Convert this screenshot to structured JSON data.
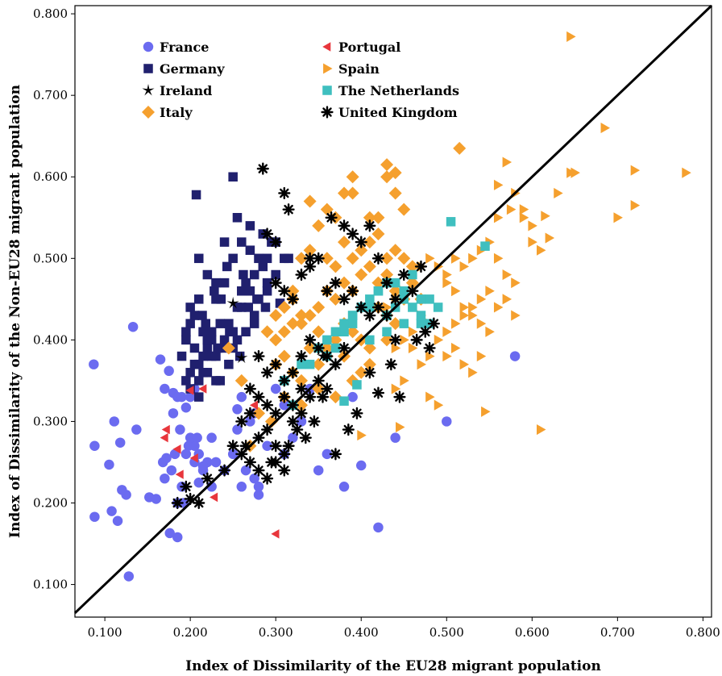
{
  "chart_data": {
    "type": "scatter",
    "xlabel": "Index of Dissimilarity of the EU28 migrant population",
    "ylabel": "Index of Dissimilarity of the Non-EU28 migrant population",
    "xlim": [
      0.065,
      0.81
    ],
    "ylim": [
      0.06,
      0.81
    ],
    "x_ticks": [
      "0.100",
      "0.200",
      "0.300",
      "0.400",
      "0.500",
      "0.600",
      "0.700",
      "0.800"
    ],
    "x_tick_values": [
      0.1,
      0.2,
      0.3,
      0.4,
      0.5,
      0.6,
      0.7,
      0.8
    ],
    "y_ticks": [
      "0.100",
      "0.200",
      "0.300",
      "0.400",
      "0.500",
      "0.600",
      "0.700",
      "0.800"
    ],
    "y_tick_values": [
      0.1,
      0.2,
      0.3,
      0.4,
      0.5,
      0.6,
      0.7,
      0.8
    ],
    "grid": false,
    "reference_line": "y = x",
    "legend_position": "top-left",
    "series": [
      {
        "name": "France",
        "marker": "circle",
        "color": "#6b6bf0",
        "x": [
          0.087,
          0.088,
          0.111,
          0.128,
          0.133,
          0.105,
          0.118,
          0.115,
          0.125,
          0.108,
          0.12,
          0.088,
          0.137,
          0.152,
          0.16,
          0.165,
          0.17,
          0.175,
          0.18,
          0.185,
          0.19,
          0.195,
          0.2,
          0.205,
          0.21,
          0.215,
          0.22,
          0.17,
          0.172,
          0.178,
          0.182,
          0.188,
          0.19,
          0.195,
          0.198,
          0.205,
          0.21,
          0.215,
          0.168,
          0.176,
          0.185,
          0.192,
          0.2,
          0.208,
          0.225,
          0.23,
          0.24,
          0.25,
          0.255,
          0.26,
          0.265,
          0.27,
          0.275,
          0.28,
          0.29,
          0.3,
          0.31,
          0.32,
          0.33,
          0.34,
          0.35,
          0.36,
          0.38,
          0.39,
          0.4,
          0.42,
          0.44,
          0.5,
          0.58,
          0.18,
          0.185,
          0.275,
          0.28,
          0.255,
          0.225,
          0.23,
          0.31,
          0.26,
          0.205
        ],
        "y": [
          0.37,
          0.183,
          0.3,
          0.11,
          0.416,
          0.247,
          0.274,
          0.178,
          0.21,
          0.19,
          0.216,
          0.27,
          0.29,
          0.207,
          0.205,
          0.376,
          0.34,
          0.362,
          0.335,
          0.33,
          0.33,
          0.317,
          0.33,
          0.27,
          0.26,
          0.24,
          0.25,
          0.23,
          0.255,
          0.24,
          0.26,
          0.29,
          0.22,
          0.26,
          0.27,
          0.25,
          0.225,
          0.245,
          0.25,
          0.163,
          0.158,
          0.2,
          0.28,
          0.28,
          0.22,
          0.25,
          0.24,
          0.26,
          0.315,
          0.22,
          0.24,
          0.3,
          0.23,
          0.21,
          0.27,
          0.34,
          0.26,
          0.28,
          0.3,
          0.34,
          0.24,
          0.26,
          0.22,
          0.33,
          0.246,
          0.17,
          0.28,
          0.3,
          0.38,
          0.31,
          0.2,
          0.31,
          0.22,
          0.29,
          0.28,
          0.25,
          0.32,
          0.33,
          0.34
        ]
      },
      {
        "name": "Germany",
        "marker": "square",
        "color": "#20206e",
        "x": [
          0.19,
          0.195,
          0.2,
          0.205,
          0.21,
          0.215,
          0.22,
          0.225,
          0.23,
          0.235,
          0.24,
          0.245,
          0.25,
          0.255,
          0.26,
          0.265,
          0.27,
          0.275,
          0.28,
          0.285,
          0.29,
          0.295,
          0.3,
          0.31,
          0.195,
          0.2,
          0.205,
          0.21,
          0.215,
          0.22,
          0.225,
          0.23,
          0.235,
          0.24,
          0.245,
          0.25,
          0.255,
          0.26,
          0.2,
          0.205,
          0.21,
          0.215,
          0.22,
          0.225,
          0.23,
          0.24,
          0.25,
          0.26,
          0.27,
          0.28,
          0.29,
          0.207,
          0.25,
          0.21,
          0.22,
          0.23,
          0.24,
          0.255,
          0.27,
          0.285,
          0.3,
          0.315,
          0.275,
          0.265,
          0.243,
          0.228,
          0.214,
          0.236,
          0.262,
          0.275,
          0.29,
          0.305,
          0.2,
          0.21,
          0.22,
          0.195,
          0.218,
          0.232,
          0.246,
          0.258,
          0.268,
          0.278,
          0.288
        ],
        "y": [
          0.38,
          0.4,
          0.42,
          0.39,
          0.37,
          0.41,
          0.36,
          0.4,
          0.38,
          0.35,
          0.39,
          0.42,
          0.41,
          0.4,
          0.44,
          0.47,
          0.46,
          0.48,
          0.45,
          0.49,
          0.5,
          0.52,
          0.48,
          0.5,
          0.41,
          0.44,
          0.43,
          0.45,
          0.36,
          0.39,
          0.38,
          0.35,
          0.42,
          0.4,
          0.37,
          0.39,
          0.44,
          0.46,
          0.34,
          0.37,
          0.35,
          0.38,
          0.4,
          0.41,
          0.45,
          0.47,
          0.5,
          0.52,
          0.54,
          0.5,
          0.46,
          0.578,
          0.6,
          0.5,
          0.48,
          0.47,
          0.52,
          0.55,
          0.51,
          0.53,
          0.52,
          0.5,
          0.43,
          0.41,
          0.49,
          0.46,
          0.43,
          0.45,
          0.48,
          0.42,
          0.47,
          0.445,
          0.36,
          0.33,
          0.4,
          0.35,
          0.42,
          0.39,
          0.41,
          0.38,
          0.44,
          0.45,
          0.44
        ]
      },
      {
        "name": "Ireland",
        "marker": "star",
        "color": "#000000",
        "x": [
          0.25,
          0.26,
          0.355
        ],
        "y": [
          0.445,
          0.378,
          0.38
        ]
      },
      {
        "name": "Italy",
        "marker": "diamond",
        "color": "#f5a02e",
        "x": [
          0.245,
          0.26,
          0.29,
          0.3,
          0.31,
          0.32,
          0.33,
          0.34,
          0.35,
          0.36,
          0.37,
          0.38,
          0.39,
          0.4,
          0.41,
          0.42,
          0.43,
          0.44,
          0.45,
          0.3,
          0.31,
          0.32,
          0.33,
          0.34,
          0.35,
          0.36,
          0.37,
          0.38,
          0.39,
          0.4,
          0.41,
          0.42,
          0.43,
          0.44,
          0.33,
          0.34,
          0.36,
          0.37,
          0.38,
          0.39,
          0.4,
          0.41,
          0.42,
          0.43,
          0.44,
          0.45,
          0.46,
          0.31,
          0.32,
          0.35,
          0.37,
          0.38,
          0.39,
          0.41,
          0.43,
          0.44,
          0.45,
          0.515,
          0.43,
          0.44,
          0.34,
          0.36,
          0.39,
          0.42,
          0.3,
          0.31,
          0.32,
          0.33,
          0.35,
          0.36,
          0.38,
          0.4,
          0.41,
          0.43,
          0.46,
          0.47,
          0.27,
          0.28,
          0.295,
          0.31,
          0.33,
          0.35,
          0.37,
          0.39
        ],
        "y": [
          0.39,
          0.35,
          0.41,
          0.43,
          0.44,
          0.45,
          0.42,
          0.43,
          0.44,
          0.46,
          0.45,
          0.47,
          0.46,
          0.48,
          0.49,
          0.47,
          0.48,
          0.46,
          0.45,
          0.4,
          0.41,
          0.42,
          0.43,
          0.39,
          0.41,
          0.38,
          0.4,
          0.42,
          0.41,
          0.4,
          0.39,
          0.44,
          0.43,
          0.42,
          0.5,
          0.51,
          0.5,
          0.49,
          0.52,
          0.5,
          0.51,
          0.52,
          0.53,
          0.5,
          0.51,
          0.5,
          0.49,
          0.44,
          0.46,
          0.54,
          0.55,
          0.58,
          0.6,
          0.55,
          0.6,
          0.58,
          0.56,
          0.635,
          0.615,
          0.605,
          0.57,
          0.56,
          0.58,
          0.55,
          0.37,
          0.38,
          0.36,
          0.35,
          0.37,
          0.39,
          0.38,
          0.36,
          0.37,
          0.4,
          0.47,
          0.45,
          0.27,
          0.31,
          0.3,
          0.33,
          0.32,
          0.34,
          0.33,
          0.35
        ]
      },
      {
        "name": "Portugal",
        "marker": "triangle-left",
        "color": "#e8363c",
        "x": [
          0.2,
          0.215,
          0.172,
          0.185,
          0.205,
          0.228,
          0.3,
          0.275,
          0.17,
          0.188
        ],
        "y": [
          0.338,
          0.34,
          0.29,
          0.266,
          0.255,
          0.207,
          0.162,
          0.32,
          0.28,
          0.235
        ]
      },
      {
        "name": "Spain",
        "marker": "triangle-right",
        "color": "#f5a02e",
        "x": [
          0.645,
          0.685,
          0.57,
          0.645,
          0.72,
          0.78,
          0.58,
          0.59,
          0.615,
          0.6,
          0.62,
          0.56,
          0.55,
          0.54,
          0.53,
          0.52,
          0.51,
          0.5,
          0.49,
          0.48,
          0.47,
          0.46,
          0.45,
          0.44,
          0.43,
          0.56,
          0.57,
          0.58,
          0.55,
          0.54,
          0.53,
          0.52,
          0.51,
          0.5,
          0.49,
          0.48,
          0.47,
          0.46,
          0.45,
          0.44,
          0.5,
          0.51,
          0.52,
          0.53,
          0.54,
          0.55,
          0.56,
          0.57,
          0.58,
          0.59,
          0.6,
          0.61,
          0.63,
          0.65,
          0.7,
          0.72,
          0.48,
          0.47,
          0.46,
          0.5,
          0.51,
          0.52,
          0.53,
          0.54,
          0.44,
          0.45,
          0.48,
          0.49,
          0.545,
          0.61,
          0.445,
          0.4,
          0.575,
          0.56
        ],
        "y": [
          0.772,
          0.66,
          0.618,
          0.605,
          0.608,
          0.605,
          0.58,
          0.56,
          0.552,
          0.54,
          0.525,
          0.55,
          0.52,
          0.51,
          0.5,
          0.49,
          0.5,
          0.48,
          0.49,
          0.5,
          0.49,
          0.47,
          0.46,
          0.45,
          0.44,
          0.5,
          0.48,
          0.47,
          0.46,
          0.45,
          0.44,
          0.43,
          0.42,
          0.41,
          0.4,
          0.42,
          0.43,
          0.41,
          0.4,
          0.39,
          0.47,
          0.46,
          0.44,
          0.43,
          0.42,
          0.41,
          0.44,
          0.45,
          0.43,
          0.55,
          0.52,
          0.51,
          0.58,
          0.605,
          0.55,
          0.565,
          0.38,
          0.37,
          0.39,
          0.38,
          0.39,
          0.37,
          0.36,
          0.38,
          0.34,
          0.35,
          0.33,
          0.32,
          0.312,
          0.29,
          0.293,
          0.283,
          0.56,
          0.59
        ]
      },
      {
        "name": "The Netherlands",
        "marker": "square",
        "color": "#3fbfbf",
        "x": [
          0.505,
          0.545,
          0.33,
          0.36,
          0.38,
          0.39,
          0.4,
          0.41,
          0.42,
          0.43,
          0.44,
          0.45,
          0.46,
          0.47,
          0.48,
          0.49,
          0.37,
          0.39,
          0.41,
          0.43,
          0.45,
          0.47,
          0.35,
          0.36,
          0.38,
          0.4,
          0.42,
          0.44,
          0.46,
          0.48,
          0.34,
          0.37,
          0.39,
          0.41,
          0.43,
          0.45,
          0.38,
          0.395,
          0.31,
          0.32,
          0.47
        ],
        "y": [
          0.545,
          0.515,
          0.37,
          0.4,
          0.41,
          0.43,
          0.44,
          0.45,
          0.46,
          0.47,
          0.44,
          0.45,
          0.44,
          0.43,
          0.45,
          0.44,
          0.39,
          0.42,
          0.4,
          0.41,
          0.42,
          0.45,
          0.39,
          0.38,
          0.42,
          0.44,
          0.46,
          0.47,
          0.48,
          0.42,
          0.37,
          0.41,
          0.43,
          0.44,
          0.43,
          0.46,
          0.325,
          0.345,
          0.35,
          0.32,
          0.42
        ]
      },
      {
        "name": "United Kingdom",
        "marker": "asterisk",
        "color": "#000000",
        "x": [
          0.285,
          0.31,
          0.315,
          0.29,
          0.3,
          0.34,
          0.365,
          0.38,
          0.39,
          0.4,
          0.41,
          0.42,
          0.3,
          0.31,
          0.32,
          0.33,
          0.34,
          0.35,
          0.36,
          0.37,
          0.38,
          0.39,
          0.4,
          0.41,
          0.42,
          0.43,
          0.44,
          0.45,
          0.46,
          0.47,
          0.28,
          0.29,
          0.3,
          0.31,
          0.32,
          0.33,
          0.34,
          0.35,
          0.36,
          0.37,
          0.38,
          0.27,
          0.28,
          0.29,
          0.3,
          0.31,
          0.32,
          0.33,
          0.34,
          0.35,
          0.36,
          0.26,
          0.27,
          0.28,
          0.29,
          0.3,
          0.31,
          0.32,
          0.33,
          0.25,
          0.26,
          0.27,
          0.28,
          0.29,
          0.3,
          0.31,
          0.22,
          0.2,
          0.185,
          0.195,
          0.21,
          0.24,
          0.265,
          0.295,
          0.355,
          0.385,
          0.42,
          0.445,
          0.465,
          0.48,
          0.475,
          0.485,
          0.43,
          0.44,
          0.315,
          0.325,
          0.335,
          0.345,
          0.37,
          0.395,
          0.41,
          0.435
        ],
        "y": [
          0.61,
          0.58,
          0.56,
          0.53,
          0.52,
          0.5,
          0.55,
          0.54,
          0.53,
          0.52,
          0.54,
          0.5,
          0.47,
          0.46,
          0.45,
          0.48,
          0.49,
          0.5,
          0.46,
          0.47,
          0.45,
          0.46,
          0.44,
          0.43,
          0.44,
          0.47,
          0.45,
          0.48,
          0.46,
          0.49,
          0.38,
          0.36,
          0.37,
          0.35,
          0.36,
          0.38,
          0.4,
          0.39,
          0.38,
          0.37,
          0.39,
          0.34,
          0.33,
          0.32,
          0.31,
          0.33,
          0.32,
          0.34,
          0.33,
          0.35,
          0.34,
          0.3,
          0.31,
          0.28,
          0.29,
          0.27,
          0.26,
          0.3,
          0.31,
          0.27,
          0.26,
          0.25,
          0.24,
          0.23,
          0.25,
          0.24,
          0.23,
          0.205,
          0.2,
          0.22,
          0.2,
          0.24,
          0.27,
          0.25,
          0.33,
          0.29,
          0.335,
          0.33,
          0.4,
          0.39,
          0.41,
          0.42,
          0.43,
          0.4,
          0.27,
          0.29,
          0.28,
          0.3,
          0.26,
          0.31,
          0.36,
          0.37
        ]
      }
    ]
  }
}
